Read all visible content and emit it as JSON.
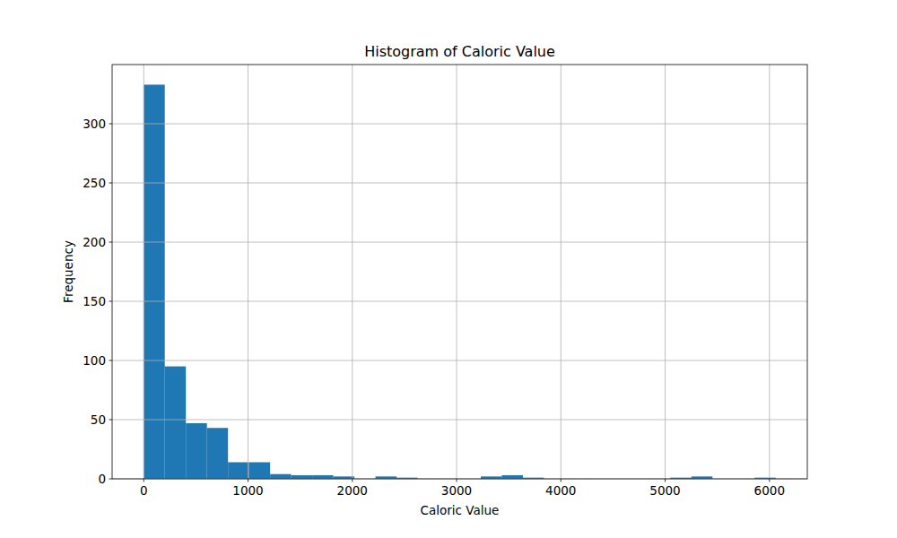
{
  "chart_data": {
    "type": "histogram",
    "title": "Histogram of Caloric Value",
    "x_label": "Caloric Value",
    "y_label": "Frequency",
    "bins": [
      0,
      202,
      404,
      606,
      808,
      1010,
      1212,
      1414,
      1616,
      1818,
      2020,
      2222,
      2424,
      2626,
      2828,
      3030,
      3232,
      3434,
      3636,
      3838,
      4040,
      4242,
      4444,
      4646,
      4848,
      5050,
      5252,
      5454,
      5656,
      5858,
      6060
    ],
    "counts": [
      333,
      95,
      47,
      43,
      14,
      14,
      4,
      3,
      3,
      2,
      0,
      2,
      1,
      0,
      0,
      0,
      2,
      3,
      1,
      0,
      0,
      0,
      0,
      0,
      0,
      1,
      2,
      0,
      0,
      1
    ],
    "color": "#1f77b4",
    "xlim": [
      -303,
      6363
    ],
    "xticks": [
      0,
      1000,
      2000,
      3000,
      4000,
      5000,
      6000
    ],
    "ylim": [
      0,
      350
    ],
    "yticks": [
      0,
      50,
      100,
      150,
      200,
      250,
      300
    ],
    "grid": true
  }
}
